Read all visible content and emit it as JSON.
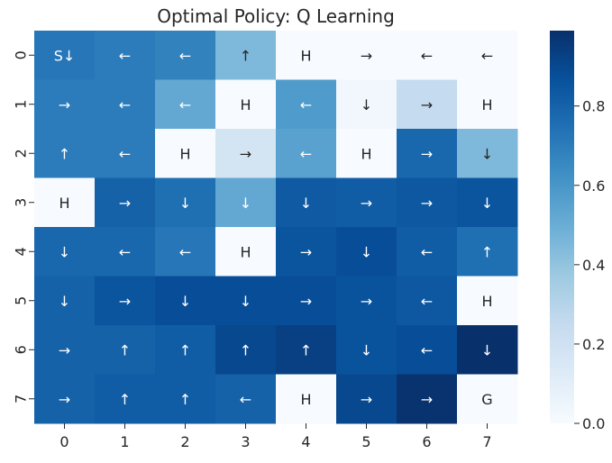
{
  "chart_data": {
    "type": "heatmap",
    "title": "Optimal Policy: Q Learning",
    "xlabel": "",
    "ylabel": "",
    "x_categories": [
      "0",
      "1",
      "2",
      "3",
      "4",
      "5",
      "6",
      "7"
    ],
    "y_categories": [
      "0",
      "1",
      "2",
      "3",
      "4",
      "5",
      "6",
      "7"
    ],
    "values": [
      [
        0.72,
        0.7,
        0.68,
        0.45,
        0.0,
        0.0,
        0.0,
        0.0
      ],
      [
        0.7,
        0.7,
        0.52,
        0.0,
        0.58,
        0.03,
        0.25,
        0.0
      ],
      [
        0.7,
        0.7,
        0.0,
        0.18,
        0.55,
        0.0,
        0.78,
        0.45
      ],
      [
        0.0,
        0.8,
        0.75,
        0.52,
        0.83,
        0.82,
        0.84,
        0.85
      ],
      [
        0.78,
        0.78,
        0.72,
        0.0,
        0.85,
        0.88,
        0.82,
        0.75
      ],
      [
        0.8,
        0.85,
        0.88,
        0.88,
        0.88,
        0.86,
        0.84,
        0.0
      ],
      [
        0.8,
        0.8,
        0.82,
        0.9,
        0.93,
        0.86,
        0.88,
        0.99
      ],
      [
        0.8,
        0.82,
        0.82,
        0.8,
        0.0,
        0.9,
        0.98,
        0.0
      ]
    ],
    "annotations": [
      [
        "S↓",
        "←",
        "←",
        "↑",
        "H",
        "→",
        "←",
        "←"
      ],
      [
        "→",
        "←",
        "←",
        "H",
        "←",
        "↓",
        "→",
        "H"
      ],
      [
        "↑",
        "←",
        "H",
        "→",
        "←",
        "H",
        "→",
        "↓"
      ],
      [
        "H",
        "→",
        "↓",
        "↓",
        "↓",
        "→",
        "→",
        "↓"
      ],
      [
        "↓",
        "←",
        "←",
        "H",
        "→",
        "↓",
        "←",
        "↑"
      ],
      [
        "↓",
        "→",
        "↓",
        "↓",
        "→",
        "→",
        "←",
        "H"
      ],
      [
        "→",
        "↑",
        "↑",
        "↑",
        "↑",
        "↓",
        "←",
        "↓"
      ],
      [
        "→",
        "↑",
        "↑",
        "←",
        "H",
        "→",
        "→",
        "G"
      ]
    ],
    "colorbar": {
      "range": [
        0.0,
        0.99
      ],
      "ticks": [
        "0.0",
        "0.2",
        "0.4",
        "0.6",
        "0.8"
      ],
      "tick_values": [
        0.0,
        0.2,
        0.4,
        0.6,
        0.8
      ]
    },
    "colormap": [
      "#f7fbff",
      "#deebf7",
      "#c6dbef",
      "#9ecae1",
      "#6baed6",
      "#4292c6",
      "#2171b5",
      "#08519c",
      "#08306b"
    ],
    "grid": false
  }
}
